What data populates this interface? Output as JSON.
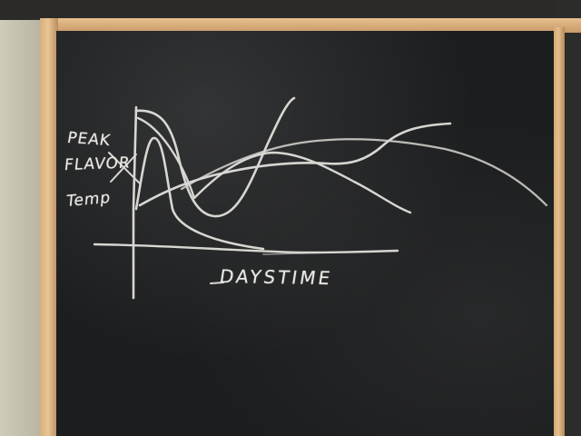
{
  "board_labels": {
    "peak": "PEAK",
    "flavor": "FLAVOR",
    "temp": "Temp",
    "x_axis": "DAYSTIME"
  },
  "colors": {
    "chalk": "#e9e9e4",
    "board": "#1c1d1e",
    "frame": "#e0b684",
    "wall": "#c6c2b0"
  }
}
